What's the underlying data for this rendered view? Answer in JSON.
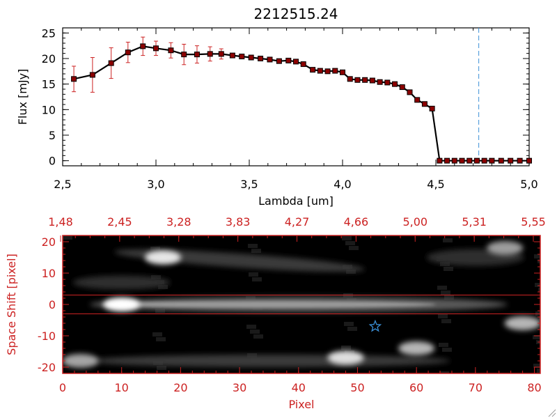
{
  "chart_data": [
    {
      "type": "line",
      "title": "2212515.24",
      "xlabel": "Lambda [um]",
      "ylabel": "Flux [mJy]",
      "xlim": [
        2.5,
        5.0
      ],
      "ylim": [
        -1,
        26
      ],
      "x_ticks": [
        "2.5",
        "3.0",
        "3.5",
        "4.0",
        "4.5",
        "5.0"
      ],
      "y_ticks": [
        "0",
        "5",
        "10",
        "15",
        "20",
        "25"
      ],
      "marker_line_value": 4.73,
      "colors": {
        "line": "#000000",
        "marker": "#8b0000",
        "errorbar": "#cc2222",
        "vline": "#3a8fd6"
      },
      "series": [
        {
          "x": [
            2.56,
            2.66,
            2.76,
            2.85,
            2.93,
            3.0,
            3.08,
            3.15,
            3.22,
            3.29,
            3.35,
            3.41,
            3.46,
            3.51,
            3.56,
            3.61,
            3.66,
            3.71,
            3.75,
            3.79,
            3.84,
            3.88,
            3.92,
            3.96,
            4.0,
            4.04,
            4.08,
            4.12,
            4.16,
            4.2,
            4.24,
            4.28,
            4.32,
            4.36,
            4.4,
            4.44,
            4.48,
            4.52,
            4.56,
            4.6,
            4.64,
            4.68,
            4.72,
            4.76,
            4.8,
            4.85,
            4.9,
            4.95,
            5.0
          ],
          "y": [
            16.0,
            16.8,
            19.1,
            21.2,
            22.4,
            22.0,
            21.6,
            20.8,
            20.8,
            20.9,
            20.9,
            20.6,
            20.4,
            20.2,
            20.0,
            19.8,
            19.5,
            19.6,
            19.4,
            18.9,
            17.8,
            17.6,
            17.5,
            17.6,
            17.3,
            16.0,
            15.8,
            15.8,
            15.7,
            15.4,
            15.3,
            15.0,
            14.4,
            13.4,
            11.9,
            11.1,
            10.2,
            0.0,
            0.0,
            0.0,
            0.0,
            0.0,
            0.0,
            0.0,
            0.0,
            0.0,
            0.0,
            0.0,
            0.0
          ],
          "yerr": [
            2.5,
            3.4,
            3.0,
            2.0,
            1.8,
            1.4,
            1.5,
            2.0,
            1.7,
            1.4,
            1.0,
            0.6,
            0.5,
            0.5,
            0.5,
            0.4,
            0.4,
            0.4,
            0.4,
            0.4,
            0.4,
            0.4,
            0.4,
            0.4,
            0.4,
            0.4,
            0.4,
            0.4,
            0.4,
            0.4,
            0.4,
            0.4,
            0.4,
            0.4,
            0.4,
            0.4,
            0.4,
            0.3,
            0.3,
            0.3,
            0.3,
            0.3,
            0.3,
            0.3,
            0.3,
            0.3,
            0.3,
            0.3,
            0.3
          ]
        }
      ]
    },
    {
      "type": "heatmap",
      "xlabel": "Pixel",
      "ylabel": "Space Shift [pixel]",
      "xlim": [
        0,
        81
      ],
      "ylim": [
        -22,
        22
      ],
      "x_ticks": [
        "0",
        "10",
        "20",
        "30",
        "40",
        "50",
        "60",
        "70",
        "80"
      ],
      "y_ticks": [
        "-20",
        "-10",
        "0",
        "10",
        "20"
      ],
      "top_ticks": [
        "1.48",
        "2.45",
        "3.28",
        "3.83",
        "4.27",
        "4.66",
        "5.00",
        "5.31",
        "5.55"
      ],
      "extraction_window": [
        -3,
        3
      ],
      "star_marker": {
        "pixel": 53,
        "shift": -7
      },
      "colors": {
        "frame": "#cc2222",
        "star": "#3a8fd6",
        "background": "#000000"
      },
      "blobs": [
        {
          "pixel": 10,
          "shift": 0,
          "brightness": 1.0
        },
        {
          "pixel": 17,
          "shift": 15,
          "brightness": 0.85
        },
        {
          "pixel": 48,
          "shift": -17,
          "brightness": 0.8
        },
        {
          "pixel": 60,
          "shift": -14,
          "brightness": 0.55
        },
        {
          "pixel": 78,
          "shift": -6,
          "brightness": 0.55
        },
        {
          "pixel": 3,
          "shift": -18,
          "brightness": 0.45
        },
        {
          "pixel": 75,
          "shift": 18,
          "brightness": 0.4
        }
      ]
    }
  ]
}
